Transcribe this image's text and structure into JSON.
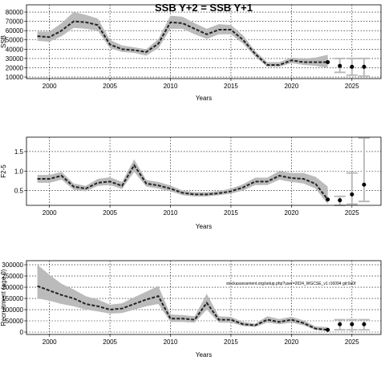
{
  "chart_data": [
    {
      "type": "line",
      "title": "SSB Y+2 = SSB Y+1",
      "xlabel": "Years",
      "ylabel": "SSB",
      "x": [
        1999,
        2000,
        2001,
        2002,
        2003,
        2004,
        2005,
        2006,
        2007,
        2008,
        2009,
        2010,
        2011,
        2012,
        2013,
        2014,
        2015,
        2016,
        2017,
        2018,
        2019,
        2020,
        2021,
        2022,
        2023
      ],
      "values": [
        54000,
        53000,
        60000,
        70000,
        69000,
        66000,
        45000,
        40000,
        39000,
        37000,
        46000,
        69000,
        68000,
        62000,
        56000,
        61000,
        61000,
        50000,
        35000,
        23000,
        23000,
        28000,
        26000,
        26000,
        26000
      ],
      "lower": [
        49000,
        48000,
        54000,
        63000,
        62000,
        60000,
        41000,
        37000,
        36000,
        33000,
        41000,
        62000,
        62000,
        56000,
        51000,
        56000,
        56000,
        46000,
        32000,
        21000,
        21000,
        25000,
        23000,
        22000,
        20000
      ],
      "upper": [
        59000,
        59000,
        68000,
        80000,
        77000,
        73000,
        50000,
        44000,
        42000,
        40000,
        51000,
        76000,
        75000,
        68000,
        62000,
        67000,
        66000,
        55000,
        38000,
        26000,
        26000,
        31000,
        30000,
        31000,
        34000
      ],
      "forecast_x": [
        2024,
        2025,
        2026
      ],
      "forecast_values": [
        22000,
        21000,
        21000
      ],
      "forecast_lower": [
        15000,
        12000,
        11000
      ],
      "forecast_upper": [
        30000,
        30000,
        30000
      ],
      "xlim": [
        1998.1,
        2027.4
      ],
      "xticks": [
        2000,
        2005,
        2010,
        2015,
        2020,
        2025
      ],
      "ylim": [
        8300,
        87800
      ],
      "yticks": [
        10000,
        20000,
        30000,
        40000,
        50000,
        60000,
        70000,
        80000
      ],
      "grid": true,
      "color": "#222222",
      "band_color": "#bbbbbb"
    },
    {
      "type": "line",
      "xlabel": "Years",
      "ylabel": "F2-5",
      "x": [
        1999,
        2000,
        2001,
        2002,
        2003,
        2004,
        2005,
        2006,
        2007,
        2008,
        2009,
        2010,
        2011,
        2012,
        2013,
        2014,
        2015,
        2016,
        2017,
        2018,
        2019,
        2020,
        2021,
        2022,
        2023
      ],
      "values": [
        0.8,
        0.8,
        0.88,
        0.6,
        0.55,
        0.7,
        0.73,
        0.62,
        1.15,
        0.68,
        0.63,
        0.55,
        0.44,
        0.4,
        0.4,
        0.43,
        0.48,
        0.58,
        0.73,
        0.73,
        0.88,
        0.82,
        0.8,
        0.67,
        0.27
      ],
      "lower": [
        0.7,
        0.7,
        0.78,
        0.52,
        0.48,
        0.62,
        0.64,
        0.54,
        0.98,
        0.6,
        0.55,
        0.48,
        0.38,
        0.35,
        0.35,
        0.38,
        0.42,
        0.5,
        0.64,
        0.64,
        0.78,
        0.72,
        0.68,
        0.55,
        0.15
      ],
      "upper": [
        0.9,
        0.9,
        0.98,
        0.68,
        0.62,
        0.8,
        0.84,
        0.72,
        1.3,
        0.77,
        0.72,
        0.63,
        0.5,
        0.46,
        0.46,
        0.49,
        0.55,
        0.66,
        0.83,
        0.83,
        1.0,
        0.95,
        0.95,
        0.85,
        0.6
      ],
      "forecast_x": [
        2024,
        2025,
        2026
      ],
      "forecast_values": [
        0.25,
        0.4,
        0.65
      ],
      "forecast_lower": [
        0.12,
        0.15,
        0.22
      ],
      "forecast_upper": [
        0.35,
        0.95,
        1.85
      ],
      "xlim": [
        1998.1,
        2027.4
      ],
      "xticks": [
        2000,
        2005,
        2010,
        2015,
        2020,
        2025
      ],
      "ylim": [
        0.12,
        1.87
      ],
      "yticks": [
        0.5,
        {
          "value": 1,
          "label": "1.0"
        },
        1.5
      ],
      "grid": true,
      "color": "#222222",
      "band_color": "#bbbbbb"
    },
    {
      "type": "line",
      "xlabel": "Years",
      "ylabel": "Recruitment (age 0)",
      "annotation": "stockassessment.org/setup.php?user=2024_WGCSE_v1 r16094 git:0a0f",
      "x": [
        1999,
        2000,
        2001,
        2002,
        2003,
        2004,
        2005,
        2006,
        2007,
        2008,
        2009,
        2010,
        2011,
        2012,
        2013,
        2014,
        2015,
        2016,
        2017,
        2018,
        2019,
        2020,
        2021,
        2022,
        2023
      ],
      "values": [
        205000,
        185000,
        165000,
        150000,
        125000,
        115000,
        100000,
        105000,
        125000,
        145000,
        160000,
        60000,
        60000,
        55000,
        130000,
        55000,
        55000,
        35000,
        30000,
        55000,
        45000,
        55000,
        40000,
        15000,
        10000
      ],
      "lower": [
        150000,
        140000,
        125000,
        115000,
        100000,
        92000,
        82000,
        85000,
        100000,
        115000,
        125000,
        45000,
        45000,
        42000,
        100000,
        42000,
        42000,
        27000,
        23000,
        42000,
        35000,
        42000,
        30000,
        9000,
        4000
      ],
      "upper": [
        300000,
        255000,
        215000,
        190000,
        160000,
        145000,
        122000,
        128000,
        155000,
        180000,
        205000,
        78000,
        76000,
        70000,
        170000,
        70000,
        68000,
        45000,
        38000,
        70000,
        58000,
        68000,
        52000,
        25000,
        22000
      ],
      "forecast_x": [
        2024,
        2025,
        2026
      ],
      "forecast_values": [
        35000,
        35000,
        35000
      ],
      "forecast_lower": [
        10000,
        10000,
        10000
      ],
      "forecast_upper": [
        55000,
        55000,
        55000
      ],
      "xlim": [
        1998.1,
        2027.4
      ],
      "xticks": [
        2000,
        2005,
        2010,
        2015,
        2020,
        2025
      ],
      "ylim": [
        -10700,
        318000
      ],
      "yticks": [
        0,
        50000,
        100000,
        150000,
        200000,
        250000,
        300000
      ],
      "grid": true,
      "color": "#222222",
      "band_color": "#bbbbbb"
    }
  ]
}
